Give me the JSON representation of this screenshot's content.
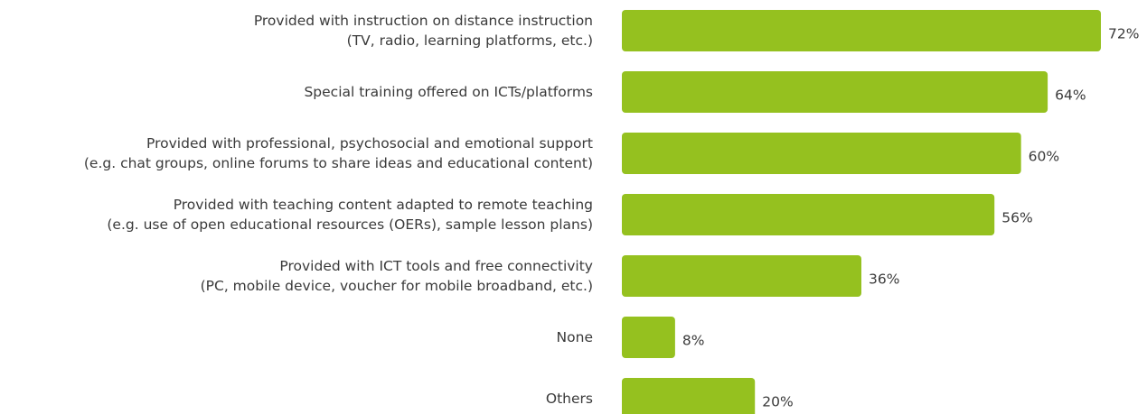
{
  "chart_data": {
    "type": "bar",
    "orientation": "horizontal",
    "color": "#95c11f",
    "categories": [
      [
        "Provided with instruction on distance instruction",
        "(TV, radio, learning platforms, etc.)"
      ],
      [
        "Special training offered on ICTs/platforms"
      ],
      [
        "Provided with professional, psychosocial and emotional support",
        "(e.g. chat groups, online forums to share ideas and educational content)"
      ],
      [
        "Provided with teaching content adapted to remote teaching",
        "(e.g. use of open educational resources (OERs), sample lesson plans)"
      ],
      [
        "Provided with ICT tools and free connectivity",
        "(PC, mobile device, voucher for mobile broadband, etc.)"
      ],
      [
        "None"
      ],
      [
        "Others"
      ]
    ],
    "values": [
      72,
      64,
      60,
      56,
      36,
      8,
      20
    ],
    "value_labels": [
      "72%",
      "64%",
      "60%",
      "56%",
      "36%",
      "8%",
      "20%"
    ]
  }
}
